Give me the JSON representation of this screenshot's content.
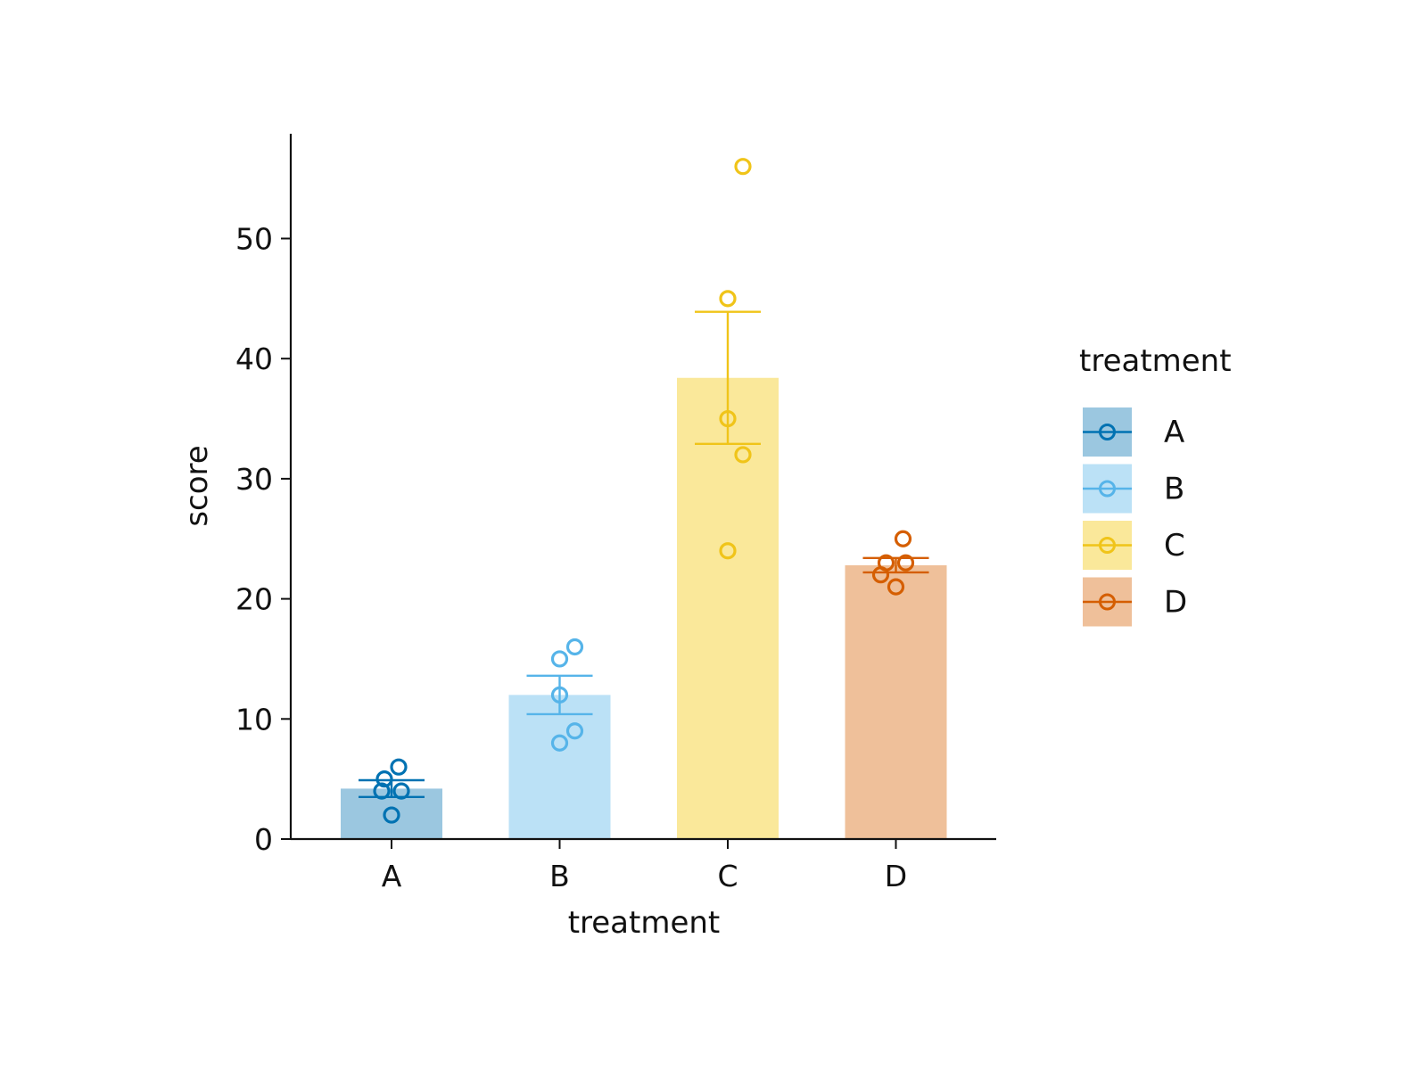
{
  "chart_data": {
    "type": "bar",
    "xlabel": "treatment",
    "ylabel": "score",
    "ylim": [
      0,
      58.7
    ],
    "yticks": [
      0,
      10,
      20,
      30,
      40,
      50
    ],
    "categories": [
      "A",
      "B",
      "C",
      "D"
    ],
    "grid": false,
    "legend": {
      "title": "treatment",
      "position": "right",
      "entries": [
        "A",
        "B",
        "C",
        "D"
      ]
    },
    "series": [
      {
        "category": "A",
        "mean": 4.2,
        "error_low": 3.5,
        "error_high": 4.9,
        "points": [
          2,
          4,
          4,
          5,
          6
        ],
        "color": "#0072B2",
        "fill": "#9BC7E0"
      },
      {
        "category": "B",
        "mean": 12.0,
        "error_low": 10.4,
        "error_high": 13.6,
        "points": [
          8,
          9,
          12,
          15,
          16
        ],
        "color": "#56B4E9",
        "fill": "#BBE1F6"
      },
      {
        "category": "C",
        "mean": 38.4,
        "error_low": 32.9,
        "error_high": 43.9,
        "points": [
          24,
          32,
          35,
          45,
          56
        ],
        "color": "#F0C419",
        "fill": "#FAE89A"
      },
      {
        "category": "D",
        "mean": 22.8,
        "error_low": 22.2,
        "error_high": 23.4,
        "points": [
          21,
          22,
          23,
          23,
          25
        ],
        "color": "#D55E00",
        "fill": "#EFC09A"
      }
    ]
  }
}
